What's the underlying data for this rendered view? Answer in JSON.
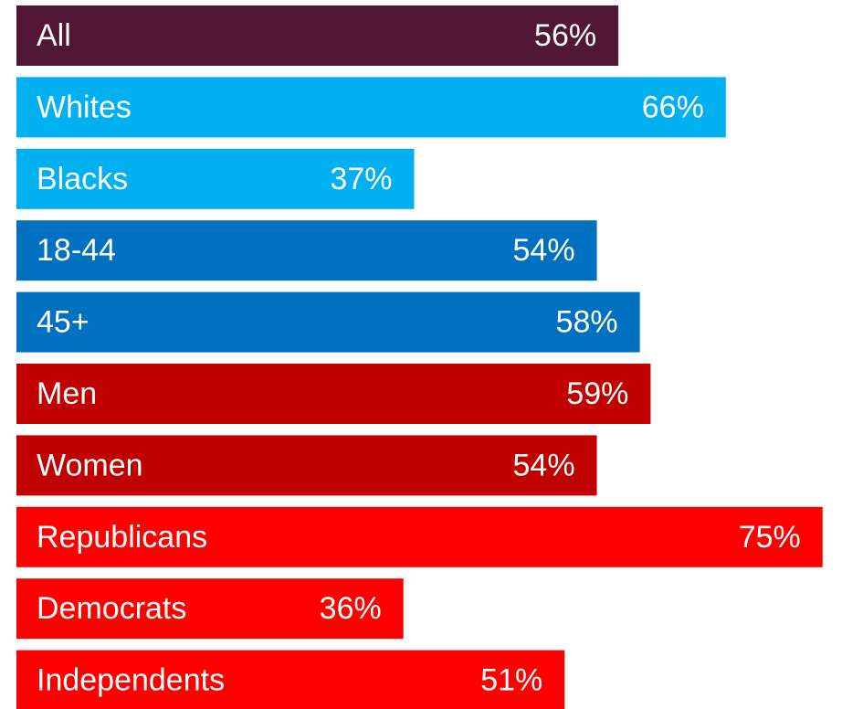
{
  "chart_data": {
    "type": "bar",
    "orientation": "horizontal",
    "categories": [
      "All",
      "Whites",
      "Blacks",
      "18-44",
      "45+",
      "Men",
      "Women",
      "Republicans",
      "Democrats",
      "Independents"
    ],
    "values": [
      56,
      66,
      37,
      54,
      58,
      59,
      54,
      75,
      36,
      51
    ],
    "value_labels": [
      "56%",
      "66%",
      "37%",
      "54%",
      "58%",
      "59%",
      "54%",
      "75%",
      "36%",
      "51%"
    ],
    "bar_colors": [
      "#521734",
      "#00b0f0",
      "#00b0f0",
      "#0070c0",
      "#0070c0",
      "#c00000",
      "#c00000",
      "#ff0000",
      "#ff0000",
      "#ff0000"
    ],
    "label_color": "#ffffff",
    "title": "",
    "xlabel": "",
    "ylabel": "",
    "xlim": [
      0,
      75
    ],
    "grid": false,
    "legend": "none"
  }
}
